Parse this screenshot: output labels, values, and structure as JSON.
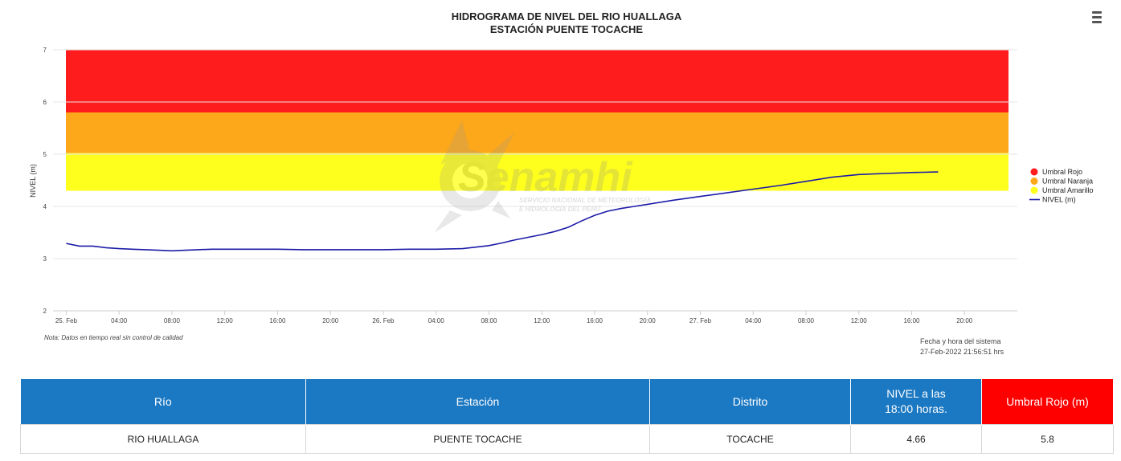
{
  "chart_data": {
    "type": "line",
    "title": "HIDROGRAMA DE NIVEL DEL RIO HUALLAGA",
    "subtitle": "ESTACIÓN PUENTE TOCACHE",
    "ylabel": "NIVEL (m)",
    "xlabel": "",
    "ylim": [
      2,
      7
    ],
    "yticks": [
      "2",
      "3",
      "4",
      "5",
      "6",
      "7"
    ],
    "xlim_hours": [
      -1,
      72
    ],
    "xticks": [
      {
        "h": 0,
        "label": "25. Feb"
      },
      {
        "h": 4,
        "label": "04:00"
      },
      {
        "h": 8,
        "label": "08:00"
      },
      {
        "h": 12,
        "label": "12:00"
      },
      {
        "h": 16,
        "label": "16:00"
      },
      {
        "h": 20,
        "label": "20:00"
      },
      {
        "h": 24,
        "label": "26. Feb"
      },
      {
        "h": 28,
        "label": "04:00"
      },
      {
        "h": 32,
        "label": "08:00"
      },
      {
        "h": 36,
        "label": "12:00"
      },
      {
        "h": 40,
        "label": "16:00"
      },
      {
        "h": 44,
        "label": "20:00"
      },
      {
        "h": 48,
        "label": "27. Feb"
      },
      {
        "h": 52,
        "label": "04:00"
      },
      {
        "h": 56,
        "label": "08:00"
      },
      {
        "h": 60,
        "label": "12:00"
      },
      {
        "h": 64,
        "label": "16:00"
      },
      {
        "h": 68,
        "label": "20:00"
      }
    ],
    "thresholds": [
      {
        "name": "Umbral Rojo",
        "from": 5.8,
        "to": 7,
        "color": "#ff1c1c"
      },
      {
        "name": "Umbral Naranja",
        "from": 5.02,
        "to": 5.8,
        "color": "#fda71a"
      },
      {
        "name": "Umbral Amarillo",
        "from": 4.3,
        "to": 5.02,
        "color": "#ffff1e"
      }
    ],
    "series": [
      {
        "name": "NIVEL (m)",
        "color": "#1b1ba8",
        "x_hours": [
          0,
          1,
          2,
          3,
          4,
          5,
          6,
          7,
          8,
          9,
          10,
          11,
          12,
          14,
          16,
          18,
          20,
          22,
          24,
          26,
          28,
          30,
          31,
          32,
          33,
          34,
          35,
          36,
          37,
          38,
          39,
          40,
          41,
          42,
          43,
          44,
          46,
          48,
          50,
          52,
          54,
          56,
          58,
          60,
          62,
          64,
          66
        ],
        "values": [
          3.29,
          3.24,
          3.24,
          3.21,
          3.19,
          3.18,
          3.17,
          3.16,
          3.15,
          3.16,
          3.17,
          3.18,
          3.18,
          3.18,
          3.18,
          3.17,
          3.17,
          3.17,
          3.17,
          3.18,
          3.18,
          3.19,
          3.22,
          3.25,
          3.3,
          3.36,
          3.41,
          3.46,
          3.52,
          3.6,
          3.72,
          3.83,
          3.91,
          3.96,
          4.0,
          4.04,
          4.12,
          4.19,
          4.26,
          4.33,
          4.4,
          4.48,
          4.56,
          4.61,
          4.63,
          4.65,
          4.66
        ]
      }
    ],
    "legend_position": "right",
    "grid": true
  },
  "watermark": {
    "brand": "Senamhi",
    "line1": "SERVICIO NACIONAL DE METEOROLOGÍA",
    "line2": "E HIDROLOGÍA DEL PERÚ"
  },
  "note": "Nota: Datos en tiempo real sin control de calidad",
  "system_time": {
    "label": "Fecha y hora del sistema",
    "value": "27-Feb-2022 21:56:51 hrs"
  },
  "colors": {
    "header_blue": "#1b78c2",
    "header_red": "#ff0000"
  },
  "table": {
    "headers": [
      "Río",
      "Estación",
      "Distrito",
      "NIVEL a las 18:00 horas.",
      "Umbral Rojo (m)"
    ],
    "row": [
      "RIO HUALLAGA",
      "PUENTE TOCACHE",
      "TOCACHE",
      "4.66",
      "5.8"
    ]
  }
}
